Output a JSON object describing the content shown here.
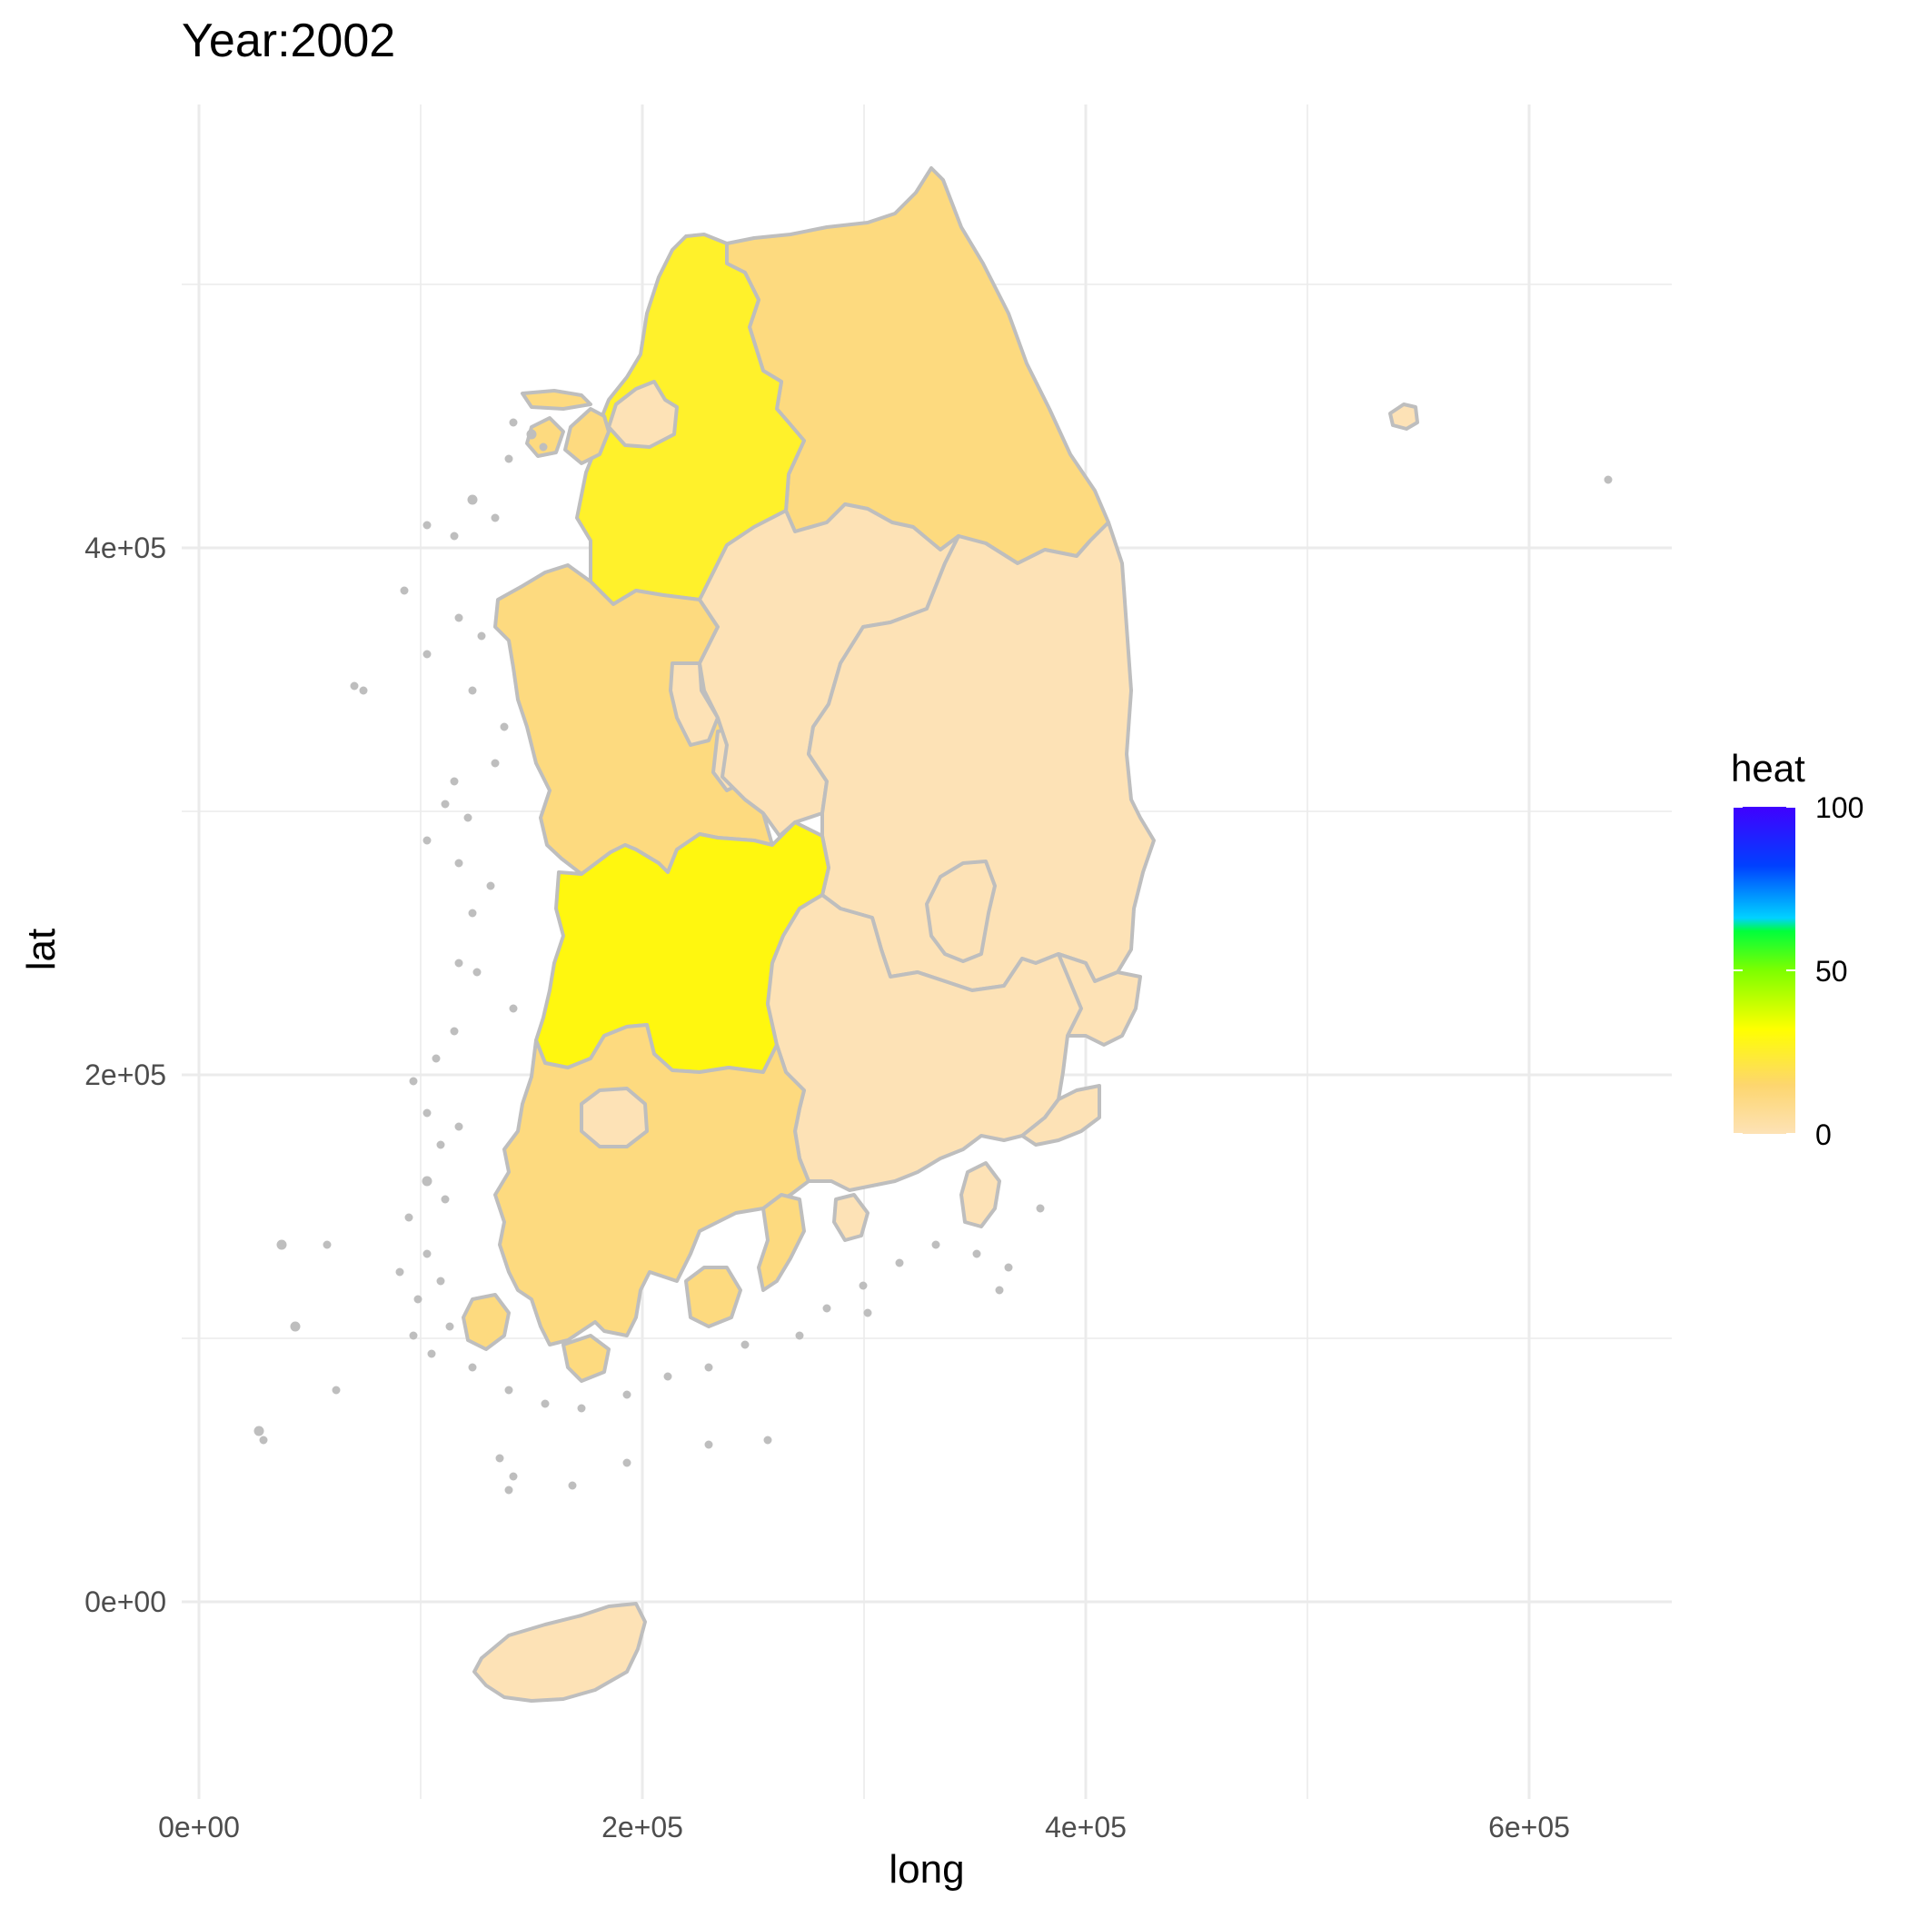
{
  "chart_data": {
    "type": "choropleth-map",
    "title": "Year:2002",
    "xlabel": "long",
    "ylabel": "lat",
    "x_ticks": [
      {
        "value": 0,
        "label": "0e+00"
      },
      {
        "value": 200000,
        "label": "2e+05"
      },
      {
        "value": 400000,
        "label": "4e+05"
      },
      {
        "value": 600000,
        "label": "6e+05"
      }
    ],
    "y_ticks": [
      {
        "value": 0,
        "label": "0e+00"
      },
      {
        "value": 200000,
        "label": "2e+05"
      },
      {
        "value": 400000,
        "label": "4e+05"
      }
    ],
    "grid": true,
    "legend": {
      "title": "heat",
      "placement": "right",
      "range": [
        0,
        100
      ],
      "breaks": [
        {
          "value": 0,
          "label": "0"
        },
        {
          "value": 50,
          "label": "50"
        },
        {
          "value": 100,
          "label": "100"
        }
      ],
      "colors": [
        "#fde2b6",
        "#fdd66e",
        "#ffff00",
        "#00ff3c",
        "#00d2ff",
        "#0040ff",
        "#4000ff"
      ]
    },
    "regions": [
      {
        "name": "Gangwon",
        "fill": "#fdda7f"
      },
      {
        "name": "Gyeonggi",
        "fill": "#fff12b"
      },
      {
        "name": "Seoul",
        "fill": "#fde2b6"
      },
      {
        "name": "Incheon",
        "fill": "#fdda7f"
      },
      {
        "name": "Chungnam",
        "fill": "#fdda7f"
      },
      {
        "name": "Chungbuk",
        "fill": "#fde2b6"
      },
      {
        "name": "Daejeon",
        "fill": "#fde2b6"
      },
      {
        "name": "Sejong",
        "fill": "#fde2b6"
      },
      {
        "name": "Gyeongbuk",
        "fill": "#fde2b6"
      },
      {
        "name": "Daegu",
        "fill": "#fde2b6"
      },
      {
        "name": "Jeonbuk",
        "fill": "#fff70f"
      },
      {
        "name": "Gyeongnam",
        "fill": "#fde2b6"
      },
      {
        "name": "Ulsan",
        "fill": "#fde2b6"
      },
      {
        "name": "Busan",
        "fill": "#fde2b6"
      },
      {
        "name": "Jeonnam",
        "fill": "#fdda7f"
      },
      {
        "name": "Gwangju",
        "fill": "#fde2b6"
      },
      {
        "name": "Jeju",
        "fill": "#fde2b6"
      },
      {
        "name": "Ulleungdo",
        "fill": "#fde2b6"
      }
    ],
    "border_color": "#bebebe"
  }
}
